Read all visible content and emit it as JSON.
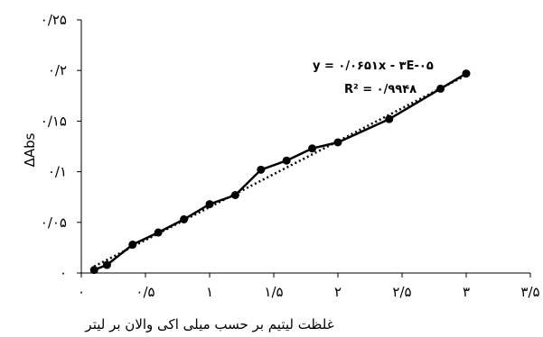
{
  "chart_data": {
    "type": "line",
    "title": "",
    "xlabel": "غلظت لیتیم بر حسب میلی اکی والان بر لیتر",
    "ylabel": "ΔAbs",
    "xlim": [
      0,
      3.5
    ],
    "ylim": [
      0,
      0.25
    ],
    "x_ticks": [
      {
        "value": 0,
        "label": "۰"
      },
      {
        "value": 0.5,
        "label": "۰/۵"
      },
      {
        "value": 1,
        "label": "۱"
      },
      {
        "value": 1.5,
        "label": "۱/۵"
      },
      {
        "value": 2,
        "label": "۲"
      },
      {
        "value": 2.5,
        "label": "۲/۵"
      },
      {
        "value": 3,
        "label": "۳"
      },
      {
        "value": 3.5,
        "label": "۳/۵"
      }
    ],
    "y_ticks": [
      {
        "value": 0,
        "label": "۰"
      },
      {
        "value": 0.05,
        "label": "۰/۰۵"
      },
      {
        "value": 0.1,
        "label": "۰/۱"
      },
      {
        "value": 0.15,
        "label": "۰/۱۵"
      },
      {
        "value": 0.2,
        "label": "۰/۲"
      },
      {
        "value": 0.25,
        "label": "۰/۲۵"
      }
    ],
    "grid": false,
    "legend": "none",
    "series": [
      {
        "color": "#000000",
        "marker": "circle",
        "x": [
          0.1,
          0.2,
          0.4,
          0.6,
          0.8,
          1.0,
          1.2,
          1.4,
          1.6,
          1.8,
          2.0,
          2.4,
          2.8,
          3.0
        ],
        "y": [
          0.003,
          0.008,
          0.028,
          0.04,
          0.053,
          0.068,
          0.077,
          0.102,
          0.111,
          0.123,
          0.129,
          0.152,
          0.182,
          0.197
        ]
      }
    ],
    "trendline": {
      "style": "dotted",
      "slope": 0.0651,
      "intercept": -3e-05,
      "equation": "y = ۰/۰۶۵۱x - ۳E-۰۵",
      "r2": "R² = ۰/۹۹۴۸"
    }
  }
}
